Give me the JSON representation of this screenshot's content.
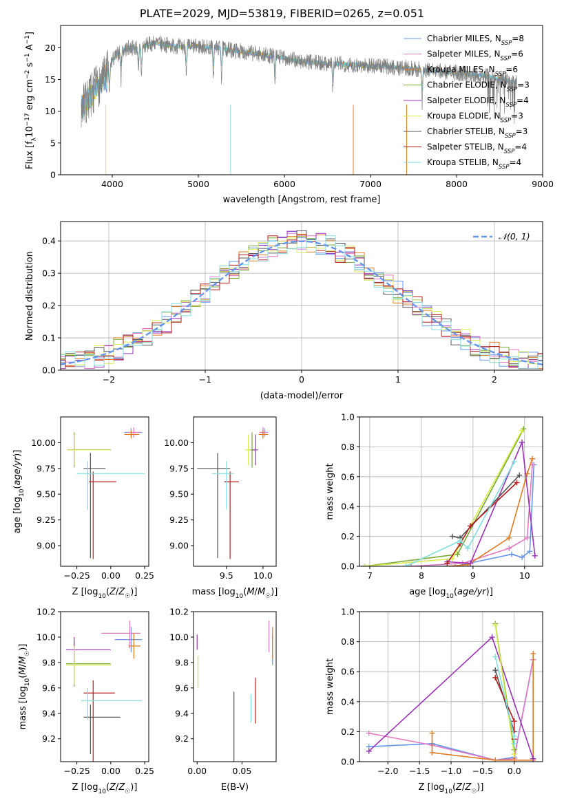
{
  "title": "PLATE=2029, MJD=53819, FIBERID=0265, z=0.051",
  "colors": {
    "chabrier_miles": "#6495ed",
    "salpeter_miles": "#e377c2",
    "kroupa_miles": "#e07b20",
    "chabrier_elodie": "#77a832",
    "salpeter_elodie": "#9b30b8",
    "kroupa_elodie": "#d9ec4a",
    "chabrier_stelib": "#555555",
    "salpeter_stelib": "#b31b1b",
    "kroupa_stelib": "#7fdde0",
    "data": "#808080",
    "normal": "#6495ed"
  },
  "chart_data": [
    {
      "id": "spectrum",
      "type": "line",
      "xlabel": "wavelength [Angstrom, rest frame]",
      "ylabel": "Flux [f_λ 10^-17 erg cm^-2 s^-1 A^-1]",
      "xlim": [
        3400,
        9000
      ],
      "ylim": [
        0,
        23.5
      ],
      "xticks": [
        "4000",
        "5000",
        "6000",
        "7000",
        "8000",
        "9000"
      ],
      "yticks": [
        "0",
        "5",
        "10",
        "15",
        "20"
      ],
      "legend": [
        "Chabrier MILES, N_SSP=8",
        "Salpeter MILES, N_SSP=6",
        "Kroupa MILES, N_SSP=6",
        "Chabrier ELODIE, N_SSP=3",
        "Salpeter ELODIE, N_SSP=4",
        "Kroupa ELODIE, N_SSP=3",
        "Chabrier STELIB, N_SSP=3",
        "Salpeter STELIB, N_SSP=4",
        "Kroupa STELIB, N_SSP=4"
      ],
      "legend_position": "right",
      "continuum_x": [
        3640,
        3700,
        3800,
        3900,
        4000,
        4100,
        4200,
        4300,
        4400,
        4500,
        4600,
        4800,
        5000,
        5200,
        5400,
        5600,
        5800,
        6000,
        6200,
        6400,
        6600,
        6800,
        7000,
        7200,
        7400,
        7600,
        7800,
        8000,
        8200,
        8400,
        8600,
        8700
      ],
      "continuum_y": [
        10.5,
        11.5,
        13.5,
        15,
        18,
        19.5,
        20,
        20,
        20.4,
        20.8,
        20.5,
        20.2,
        20.2,
        20,
        19.6,
        19.2,
        18.8,
        18.4,
        17.8,
        17.6,
        17.5,
        17.3,
        17.2,
        17.0,
        16.8,
        16.5,
        16.3,
        16.0,
        15.8,
        15.4,
        14.8,
        14.5
      ]
    },
    {
      "id": "residuals",
      "type": "line",
      "xlabel": "(data-model)/error",
      "ylabel": "Normed distribution",
      "xlim": [
        -2.5,
        2.5
      ],
      "ylim": [
        0,
        0.46
      ],
      "xticks": [
        "−2",
        "−1",
        "0",
        "1",
        "2"
      ],
      "yticks": [
        "0.0",
        "0.1",
        "0.2",
        "0.3",
        "0.4"
      ],
      "legend": [
        "𝒩(0, 1)"
      ],
      "legend_position": "top-right",
      "bin_width": 0.1,
      "n_models": 9
    },
    {
      "id": "age-vs-z",
      "type": "scatter",
      "xlabel": "Z [log₁₀(Z/Z☉)]",
      "ylabel": "age [log₁₀(age/yr)]",
      "xlim": [
        -0.37,
        0.28
      ],
      "ylim": [
        8.8,
        10.25
      ],
      "xticks": [
        "−0.25",
        "0.00",
        "0.25"
      ],
      "yticks": [
        "9.00",
        "9.25",
        "9.50",
        "9.75",
        "10.00"
      ],
      "points": [
        {
          "model": "chabrier_miles",
          "x": 0.15,
          "xerr": [
            0.05,
            0.08
          ],
          "y": 10.1,
          "yerr": [
            0.04,
            0.04
          ]
        },
        {
          "model": "salpeter_miles",
          "x": 0.17,
          "xerr": [
            0.05,
            0.05
          ],
          "y": 10.1,
          "yerr": [
            0.05,
            0.05
          ]
        },
        {
          "model": "kroupa_miles",
          "x": 0.15,
          "xerr": [
            0.05,
            0.06
          ],
          "y": 10.08,
          "yerr": [
            0.04,
            0.04
          ]
        },
        {
          "model": "chabrier_elodie",
          "x": -0.27,
          "xerr": [
            0.05,
            0.27
          ],
          "y": 9.93,
          "yerr": [
            0.17,
            0.17
          ]
        },
        {
          "model": "salpeter_elodie",
          "x": -0.27,
          "xerr": [
            0.05,
            0.27
          ],
          "y": 9.93,
          "yerr": [
            0.15,
            0.15
          ]
        },
        {
          "model": "kroupa_elodie",
          "x": -0.27,
          "xerr": [
            0.05,
            0.27
          ],
          "y": 9.93,
          "yerr": [
            0.15,
            0.15
          ]
        },
        {
          "model": "chabrier_stelib",
          "x": -0.15,
          "xerr": [
            0.05,
            0.11
          ],
          "y": 9.75,
          "yerr": [
            0.87,
            0.15
          ]
        },
        {
          "model": "salpeter_stelib",
          "x": -0.13,
          "xerr": [
            0.03,
            0.17
          ],
          "y": 9.62,
          "yerr": [
            0.75,
            0.1
          ]
        },
        {
          "model": "kroupa_stelib",
          "x": -0.17,
          "xerr": [
            0.08,
            0.42
          ],
          "y": 9.7,
          "yerr": [
            0.35,
            0.12
          ]
        }
      ]
    },
    {
      "id": "age-vs-mass",
      "type": "scatter",
      "xlabel": "mass [log₁₀(M/M☉)]",
      "ylabel": "",
      "xlim": [
        9.05,
        10.18
      ],
      "ylim": [
        8.8,
        10.25
      ],
      "xticks": [
        "9.5",
        "10.0"
      ],
      "yticks": [
        "9.00",
        "9.25",
        "9.50",
        "9.75",
        "10.00"
      ],
      "points": [
        {
          "model": "chabrier_miles",
          "x": 10.02,
          "xerr": [
            0.03,
            0.05
          ],
          "y": 10.1,
          "yerr": [
            0.04,
            0.04
          ]
        },
        {
          "model": "salpeter_miles",
          "x": 10.0,
          "xerr": [
            0.05,
            0.06
          ],
          "y": 10.1,
          "yerr": [
            0.05,
            0.05
          ]
        },
        {
          "model": "kroupa_miles",
          "x": 10.0,
          "xerr": [
            0.06,
            0.07
          ],
          "y": 10.08,
          "yerr": [
            0.04,
            0.04
          ]
        },
        {
          "model": "chabrier_elodie",
          "x": 9.85,
          "xerr": [
            0.05,
            0.03
          ],
          "y": 9.93,
          "yerr": [
            0.17,
            0.17
          ]
        },
        {
          "model": "salpeter_elodie",
          "x": 9.9,
          "xerr": [
            0.05,
            0.03
          ],
          "y": 9.93,
          "yerr": [
            0.15,
            0.15
          ]
        },
        {
          "model": "kroupa_elodie",
          "x": 9.8,
          "xerr": [
            0.05,
            0.03
          ],
          "y": 9.93,
          "yerr": [
            0.15,
            0.15
          ]
        },
        {
          "model": "chabrier_stelib",
          "x": 9.38,
          "xerr": [
            0.28,
            0.17
          ],
          "y": 9.75,
          "yerr": [
            0.87,
            0.15
          ]
        },
        {
          "model": "salpeter_stelib",
          "x": 9.55,
          "xerr": [
            0.08,
            0.12
          ],
          "y": 9.62,
          "yerr": [
            0.75,
            0.1
          ]
        },
        {
          "model": "kroupa_stelib",
          "x": 9.5,
          "xerr": [
            0.2,
            0.1
          ],
          "y": 9.7,
          "yerr": [
            0.35,
            0.12
          ]
        }
      ]
    },
    {
      "id": "weight-vs-age",
      "type": "line",
      "xlabel": "age [log₁₀(age/yr)]",
      "ylabel": "mass weight",
      "xlim": [
        6.8,
        10.35
      ],
      "ylim": [
        0,
        1.0
      ],
      "xticks": [
        "7",
        "8",
        "9",
        "10"
      ],
      "yticks": [
        "0.0",
        "0.2",
        "0.4",
        "0.6",
        "0.8",
        "1.0"
      ],
      "series": [
        {
          "model": "chabrier_miles",
          "x": [
            7.8,
            8.65,
            9.75,
            9.95,
            10.1,
            10.18
          ],
          "y": [
            0.0,
            0.0,
            0.08,
            0.06,
            0.1,
            0.68
          ]
        },
        {
          "model": "salpeter_miles",
          "x": [
            7.8,
            8.8,
            9.7,
            10.05,
            10.15
          ],
          "y": [
            0.0,
            0.02,
            0.12,
            0.19,
            0.68
          ]
        },
        {
          "model": "kroupa_miles",
          "x": [
            8.5,
            8.9,
            9.7,
            10.05,
            10.15
          ],
          "y": [
            0.0,
            0.01,
            0.19,
            0.62,
            0.72
          ]
        },
        {
          "model": "chabrier_elodie",
          "x": [
            6.9,
            8.7,
            9.98
          ],
          "y": [
            0.0,
            0.08,
            0.92
          ]
        },
        {
          "model": "salpeter_elodie",
          "x": [
            8.5,
            8.95,
            9.95,
            10.2
          ],
          "y": [
            0.03,
            0.02,
            0.83,
            0.07
          ]
        },
        {
          "model": "kroupa_elodie",
          "x": [
            6.9,
            8.6,
            9.95
          ],
          "y": [
            0.0,
            0.05,
            0.91
          ]
        },
        {
          "model": "chabrier_stelib",
          "x": [
            8.6,
            8.75,
            9.9
          ],
          "y": [
            0.2,
            0.19,
            0.61
          ]
        },
        {
          "model": "salpeter_stelib",
          "x": [
            8.5,
            8.75,
            8.95,
            9.85
          ],
          "y": [
            0.02,
            0.15,
            0.27,
            0.56
          ]
        },
        {
          "model": "kroupa_stelib",
          "x": [
            7.7,
            8.75,
            8.9,
            9.8
          ],
          "y": [
            0.0,
            0.17,
            0.12,
            0.7
          ]
        }
      ]
    },
    {
      "id": "mass-vs-z",
      "type": "scatter",
      "xlabel": "Z [log₁₀(Z/Z☉)]",
      "ylabel": "mass [log₁₀(M/M☉)]",
      "xlim": [
        -0.37,
        0.28
      ],
      "ylim": [
        9.02,
        10.2
      ],
      "xticks": [
        "−0.25",
        "0.00",
        "0.25"
      ],
      "yticks": [
        "9.2",
        "9.4",
        "9.6",
        "9.8",
        "10.0",
        "10.2"
      ],
      "points": [
        {
          "model": "chabrier_miles",
          "x": 0.15,
          "xerr": [
            0.12,
            0.08
          ],
          "y": 9.98,
          "yerr": [
            0.1,
            0.1
          ]
        },
        {
          "model": "salpeter_miles",
          "x": 0.14,
          "xerr": [
            0.21,
            0.08
          ],
          "y": 10.03,
          "yerr": [
            0.12,
            0.1
          ]
        },
        {
          "model": "kroupa_miles",
          "x": 0.17,
          "xerr": [
            0.04,
            0.05
          ],
          "y": 9.93,
          "yerr": [
            0.1,
            0.1
          ]
        },
        {
          "model": "chabrier_elodie",
          "x": -0.27,
          "xerr": [
            0.06,
            0.27
          ],
          "y": 9.79,
          "yerr": [
            0.18,
            0.18
          ]
        },
        {
          "model": "salpeter_elodie",
          "x": -0.27,
          "xerr": [
            0.06,
            0.27
          ],
          "y": 9.9,
          "yerr": [
            0.1,
            0.1
          ]
        },
        {
          "model": "kroupa_elodie",
          "x": -0.27,
          "xerr": [
            0.06,
            0.27
          ],
          "y": 9.78,
          "yerr": [
            0.15,
            0.15
          ]
        },
        {
          "model": "chabrier_stelib",
          "x": -0.15,
          "xerr": [
            0.05,
            0.22
          ],
          "y": 9.37,
          "yerr": [
            0.29,
            0.1
          ]
        },
        {
          "model": "salpeter_stelib",
          "x": -0.13,
          "xerr": [
            0.07,
            0.16
          ],
          "y": 9.56,
          "yerr": [
            0.55,
            0.1
          ]
        },
        {
          "model": "kroupa_stelib",
          "x": -0.17,
          "xerr": [
            0.05,
            0.4
          ],
          "y": 9.5,
          "yerr": [
            0.15,
            0.1
          ]
        }
      ]
    },
    {
      "id": "mass-vs-ebv",
      "type": "scatter",
      "xlabel": "E(B-V)",
      "ylabel": "",
      "xlim": [
        -0.004,
        0.088
      ],
      "ylim": [
        9.02,
        10.2
      ],
      "xticks": [
        "0.00",
        "0.05"
      ],
      "yticks": [
        "9.2",
        "9.4",
        "9.6",
        "9.8",
        "10.0",
        "10.2"
      ],
      "points": [
        {
          "model": "chabrier_miles",
          "x": 0.084,
          "yerr": [
            0.12,
            0.12
          ],
          "y": 9.9
        },
        {
          "model": "salpeter_miles",
          "x": 0.08,
          "yerr": [
            0.15,
            0.1
          ],
          "y": 10.03
        },
        {
          "model": "kroupa_miles",
          "x": 0.084,
          "yerr": [
            0.1,
            0.15
          ],
          "y": 9.93
        },
        {
          "model": "chabrier_elodie",
          "x": 0.001,
          "yerr": [
            0.15,
            0.1
          ],
          "y": 9.75
        },
        {
          "model": "salpeter_elodie",
          "x": 0.0,
          "yerr": [
            0.06,
            0.06
          ],
          "y": 9.96
        },
        {
          "model": "kroupa_elodie",
          "x": 0.001,
          "yerr": [
            0.15,
            0.1
          ],
          "y": 9.75
        },
        {
          "model": "chabrier_stelib",
          "x": 0.041,
          "yerr": [
            0.5,
            0.1
          ],
          "y": 9.47
        },
        {
          "model": "salpeter_stelib",
          "x": 0.065,
          "yerr": [
            0.18,
            0.18
          ],
          "y": 9.5
        },
        {
          "model": "kroupa_stelib",
          "x": 0.06,
          "yerr": [
            0.12,
            0.1
          ],
          "y": 9.45
        }
      ]
    },
    {
      "id": "weight-vs-z",
      "type": "line",
      "xlabel": "Z [log₁₀(Z/Z☉)]",
      "ylabel": "mass weight",
      "xlim": [
        -2.45,
        0.45
      ],
      "ylim": [
        0,
        1.0
      ],
      "xticks": [
        "−2.0",
        "−1.5",
        "−1.0",
        "−0.5",
        "0.0"
      ],
      "yticks": [
        "0.0",
        "0.2",
        "0.4",
        "0.6",
        "0.8",
        "1.0"
      ],
      "series": [
        {
          "model": "chabrier_miles",
          "x": [
            -2.3,
            -1.3,
            -0.3,
            0.0,
            0.3
          ],
          "y": [
            0.1,
            0.12,
            0.01,
            0.03,
            0.68
          ]
        },
        {
          "model": "salpeter_miles",
          "x": [
            -2.3,
            -1.3,
            -0.3,
            0.0,
            0.3
          ],
          "y": [
            0.19,
            0.11,
            0.01,
            0.02,
            0.68
          ]
        },
        {
          "model": "kroupa_miles",
          "x": [
            -1.3,
            -1.3,
            -0.3,
            0.0,
            0.3,
            0.3
          ],
          "y": [
            0.19,
            0.06,
            0.01,
            0.01,
            0.01,
            0.72
          ]
        },
        {
          "model": "chabrier_elodie",
          "x": [
            -0.3,
            0.0
          ],
          "y": [
            0.92,
            0.08
          ]
        },
        {
          "model": "salpeter_elodie",
          "x": [
            -2.3,
            -0.35,
            0.3
          ],
          "y": [
            0.07,
            0.83,
            0.02
          ]
        },
        {
          "model": "kroupa_elodie",
          "x": [
            -0.3,
            0.0
          ],
          "y": [
            0.91,
            0.05
          ]
        },
        {
          "model": "chabrier_stelib",
          "x": [
            -0.3,
            0.0
          ],
          "y": [
            0.61,
            0.2
          ]
        },
        {
          "model": "salpeter_stelib",
          "x": [
            -0.3,
            0.0,
            0.0
          ],
          "y": [
            0.56,
            0.27,
            0.15
          ]
        },
        {
          "model": "kroupa_stelib",
          "x": [
            -0.3,
            0.0,
            0.0
          ],
          "y": [
            0.7,
            0.17,
            0.12
          ]
        }
      ]
    }
  ]
}
